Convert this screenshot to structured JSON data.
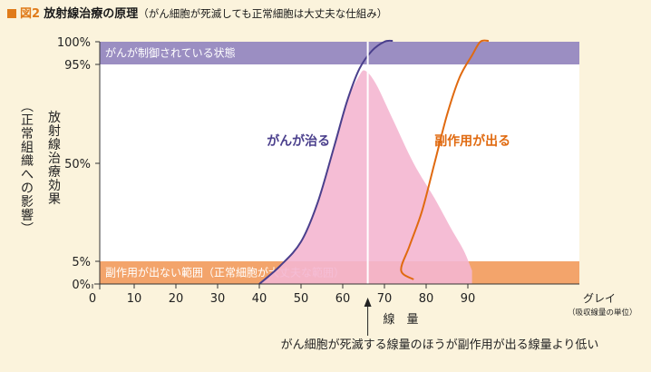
{
  "figure_label": "図2",
  "title": "放射線治療の原理",
  "subtitle": "（がん細胞が死滅しても正常細胞は大丈夫な仕組み）",
  "chart_data": {
    "type": "line",
    "x_ticks": [
      "0",
      "10",
      "20",
      "30",
      "40",
      "50",
      "60",
      "70",
      "80",
      "90"
    ],
    "x_unit": "グレイ",
    "x_unit_note": "（吸収線量の単位）",
    "xlabel": "線　量",
    "y_ticks": [
      "100%",
      "95%",
      "50%",
      "5%",
      "0%"
    ],
    "y_tick_values": [
      100,
      95,
      50,
      5,
      0
    ],
    "ylabel": "放射線治療効果",
    "ylabel_sub": "（正常組織への影響）",
    "xlim": [
      0,
      100
    ],
    "ylim": [
      0,
      100
    ],
    "bands": {
      "top": {
        "label": "がんが制御されている状態",
        "range": [
          95,
          100
        ],
        "color": "#9b8ec2"
      },
      "bottom": {
        "label": "副作用が出ない範囲（正常細胞が大丈夫な範囲）",
        "range": [
          0,
          5
        ],
        "color": "#f3a46b"
      }
    },
    "series": [
      {
        "name": "がんが治る",
        "color": "#4a3f8c",
        "x": [
          40,
          45,
          50,
          54,
          58,
          61,
          64,
          67,
          70,
          72
        ],
        "y": [
          0,
          4,
          14,
          32,
          58,
          78,
          93,
          98,
          100,
          100.2
        ]
      },
      {
        "name": "副作用が出る",
        "color": "#e06a10",
        "x": [
          77,
          74,
          76,
          79,
          82,
          85,
          88,
          91,
          93,
          95
        ],
        "y": [
          1,
          3,
          12,
          28,
          50,
          72,
          89,
          97,
          100,
          100.2
        ]
      }
    ],
    "peak_area": {
      "color": "#f4b6d0",
      "x": [
        40,
        45,
        50,
        54,
        58,
        61,
        64,
        65.5,
        68,
        72,
        77,
        82,
        86,
        89,
        91
      ],
      "y": [
        0,
        4,
        14,
        32,
        58,
        78,
        90,
        92,
        86,
        70,
        50,
        34,
        20,
        10,
        3
      ]
    },
    "marker_x": 66,
    "annotation": "がん細胞が死滅する線量のほうが副作用が出る線量より低い"
  }
}
